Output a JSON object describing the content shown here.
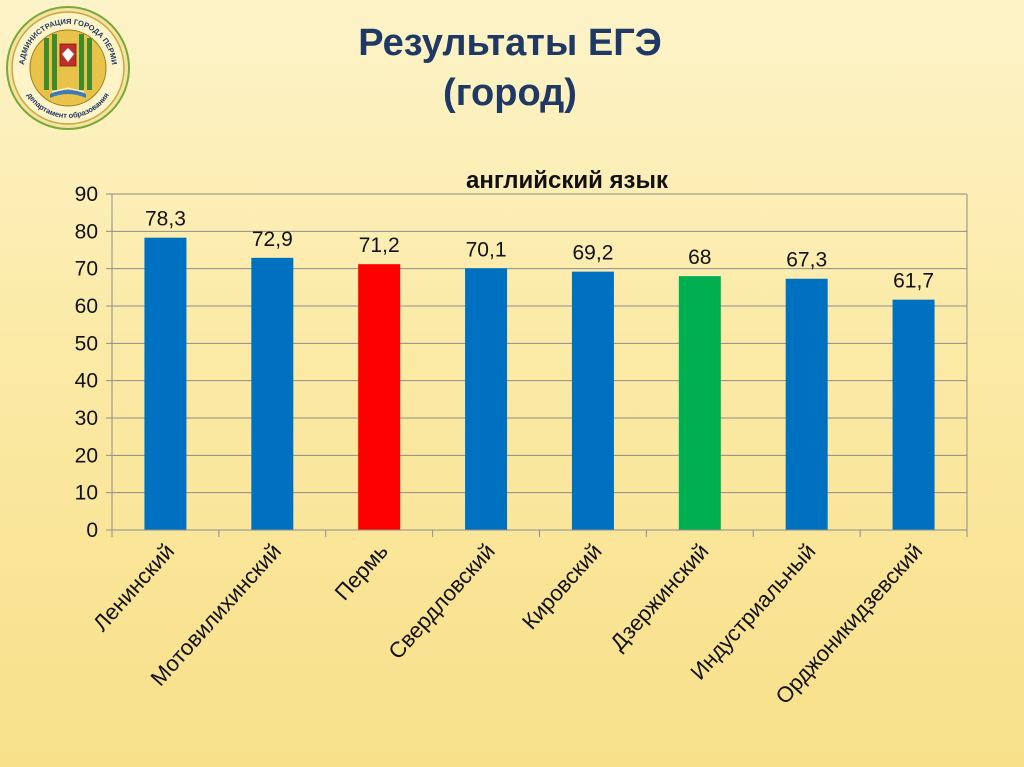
{
  "slide": {
    "title_line1": "Результаты ЕГЭ",
    "title_line2": "(город)"
  },
  "logo": {
    "text_top": "АДМИНИСТРАЦИЯ ГОРОДА ПЕРМИ",
    "text_bottom": "департамент образования"
  },
  "colors": {
    "default_bar": "#0070c0",
    "highlight_red": "#ff0000",
    "highlight_green": "#00b050"
  },
  "chart_data": {
    "type": "bar",
    "title": "английский язык",
    "categories": [
      "Ленинский",
      "Мотовилихинский",
      "Пермь",
      "Свердловский",
      "Кировский",
      "Дзержинский",
      "Индустриальный",
      "Орджоникидзевский"
    ],
    "values": [
      78.3,
      72.9,
      71.2,
      70.1,
      69.2,
      68,
      67.3,
      61.7
    ],
    "value_labels": [
      "78,3",
      "72,9",
      "71,2",
      "70,1",
      "69,2",
      "68",
      "67,3",
      "61,7"
    ],
    "bar_colors": [
      "#0070c0",
      "#0070c0",
      "#ff0000",
      "#0070c0",
      "#0070c0",
      "#00b050",
      "#0070c0",
      "#0070c0"
    ],
    "ylim": [
      0,
      90
    ],
    "yticks": [
      0,
      10,
      20,
      30,
      40,
      50,
      60,
      70,
      80,
      90
    ],
    "xlabel": "",
    "ylabel": "",
    "grid": true,
    "legend": "none"
  }
}
